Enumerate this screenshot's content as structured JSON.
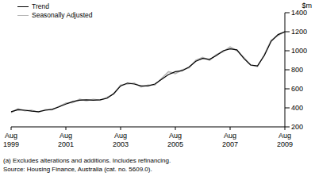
{
  "chart_data": {
    "type": "line",
    "y_label": "$m",
    "annotations": [
      "(a) Excludes alterations and additions. Includes refinancing.",
      "Source: Housing Finance, Australia (cat. no. 5609.0)."
    ],
    "categories": [
      "Aug 1999",
      null,
      null,
      null,
      null,
      null,
      null,
      null,
      "Aug 2001",
      null,
      null,
      null,
      null,
      null,
      null,
      null,
      "Aug 2003",
      null,
      null,
      null,
      null,
      null,
      null,
      null,
      "Aug 2005",
      null,
      null,
      null,
      null,
      null,
      null,
      null,
      "Aug 2007",
      null,
      null,
      null,
      null,
      null,
      null,
      null,
      "Aug 2009"
    ],
    "series": [
      {
        "name": "Seasonally Adjusted",
        "color": "#b4b4b4",
        "values": [
          350,
          390,
          370,
          375,
          355,
          380,
          380,
          415,
          450,
          455,
          490,
          475,
          490,
          480,
          510,
          545,
          640,
          650,
          660,
          620,
          640,
          640,
          710,
          780,
          760,
          800,
          820,
          900,
          930,
          900,
          960,
          990,
          1040,
          1000,
          930,
          850,
          835,
          960,
          1110,
          1160,
          1200
        ]
      },
      {
        "name": "Trend",
        "color": "#000000",
        "values": [
          360,
          380,
          375,
          365,
          360,
          375,
          385,
          410,
          440,
          465,
          480,
          485,
          480,
          485,
          500,
          550,
          630,
          660,
          650,
          630,
          630,
          650,
          700,
          750,
          780,
          790,
          830,
          890,
          920,
          910,
          950,
          1000,
          1020,
          1010,
          920,
          850,
          840,
          950,
          1100,
          1170,
          1200
        ]
      }
    ],
    "ylim": [
      200,
      1400
    ],
    "yticks": [
      200,
      400,
      600,
      800,
      1000,
      1200,
      1400
    ],
    "grid": false,
    "legend": "top-left"
  }
}
